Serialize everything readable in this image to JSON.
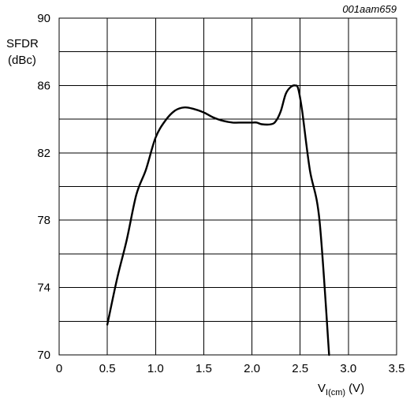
{
  "chart_data": {
    "type": "line",
    "reference_code": "001aam659",
    "ylabel_line1": "SFDR",
    "ylabel_line2": "(dBc)",
    "xlabel_main": "V",
    "xlabel_sub": "I(cm)",
    "xlabel_unit": "(V)",
    "xlim": [
      0,
      3.5
    ],
    "ylim": [
      70,
      90
    ],
    "x_ticks": [
      0,
      0.5,
      1.0,
      1.5,
      2.0,
      2.5,
      3.0,
      3.5
    ],
    "x_tick_labels": [
      "0",
      "0.5",
      "1.0",
      "1.5",
      "2.0",
      "2.5",
      "3.0",
      "3.5"
    ],
    "y_ticks": [
      70,
      74,
      78,
      82,
      86,
      90
    ],
    "y_tick_labels": [
      "70",
      "74",
      "78",
      "82",
      "86",
      "90"
    ],
    "x_grid": [
      0,
      0.5,
      1.0,
      1.5,
      2.0,
      2.5,
      3.0,
      3.5
    ],
    "y_grid": [
      70,
      72,
      74,
      76,
      78,
      80,
      82,
      84,
      86,
      88,
      90
    ],
    "grid": true,
    "colors": {
      "line": "#000000",
      "grid": "#000000",
      "background": "#ffffff"
    },
    "series": [
      {
        "x": [
          0.5,
          0.6,
          0.7,
          0.8,
          0.9,
          1.0,
          1.1,
          1.2,
          1.3,
          1.4,
          1.5,
          1.6,
          1.7,
          1.8,
          1.9,
          2.0,
          2.05,
          2.1,
          2.2,
          2.25,
          2.3,
          2.35,
          2.4,
          2.45,
          2.48,
          2.52,
          2.6,
          2.7,
          2.8
        ],
        "y": [
          71.8,
          74.5,
          76.8,
          79.5,
          81.0,
          82.9,
          83.9,
          84.5,
          84.7,
          84.6,
          84.4,
          84.1,
          83.9,
          83.8,
          83.8,
          83.8,
          83.8,
          83.7,
          83.7,
          83.9,
          84.5,
          85.5,
          85.9,
          86.0,
          85.8,
          84.5,
          81.0,
          78.0,
          70.0
        ]
      }
    ]
  }
}
